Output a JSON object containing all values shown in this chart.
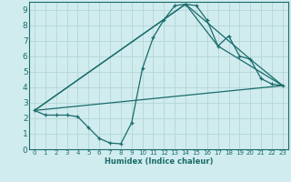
{
  "xlabel": "Humidex (Indice chaleur)",
  "background_color": "#d0ecee",
  "grid_color": "#b8d8da",
  "line_color": "#1a6b6b",
  "xlim": [
    -0.5,
    23.5
  ],
  "ylim": [
    0,
    9.5
  ],
  "xticks": [
    0,
    1,
    2,
    3,
    4,
    5,
    6,
    7,
    8,
    9,
    10,
    11,
    12,
    13,
    14,
    15,
    16,
    17,
    18,
    19,
    20,
    21,
    22,
    23
  ],
  "yticks": [
    0,
    1,
    2,
    3,
    4,
    5,
    6,
    7,
    8,
    9
  ],
  "main_series": {
    "x": [
      0,
      1,
      2,
      3,
      4,
      5,
      6,
      7,
      8,
      9,
      10,
      11,
      12,
      13,
      14,
      15,
      16,
      17,
      18,
      19,
      20,
      21,
      22,
      23
    ],
    "y": [
      2.5,
      2.2,
      2.2,
      2.2,
      2.1,
      1.4,
      0.7,
      0.4,
      0.35,
      1.7,
      5.2,
      7.2,
      8.35,
      9.25,
      9.35,
      9.25,
      8.3,
      6.65,
      7.3,
      6.0,
      5.8,
      4.55,
      4.2,
      4.1
    ]
  },
  "straight_lines": [
    {
      "x": [
        0,
        14,
        17,
        23
      ],
      "y": [
        2.5,
        9.35,
        6.65,
        4.1
      ]
    },
    {
      "x": [
        0,
        14,
        20,
        23
      ],
      "y": [
        2.5,
        9.35,
        5.8,
        4.1
      ]
    },
    {
      "x": [
        0,
        23
      ],
      "y": [
        2.5,
        4.1
      ]
    }
  ]
}
